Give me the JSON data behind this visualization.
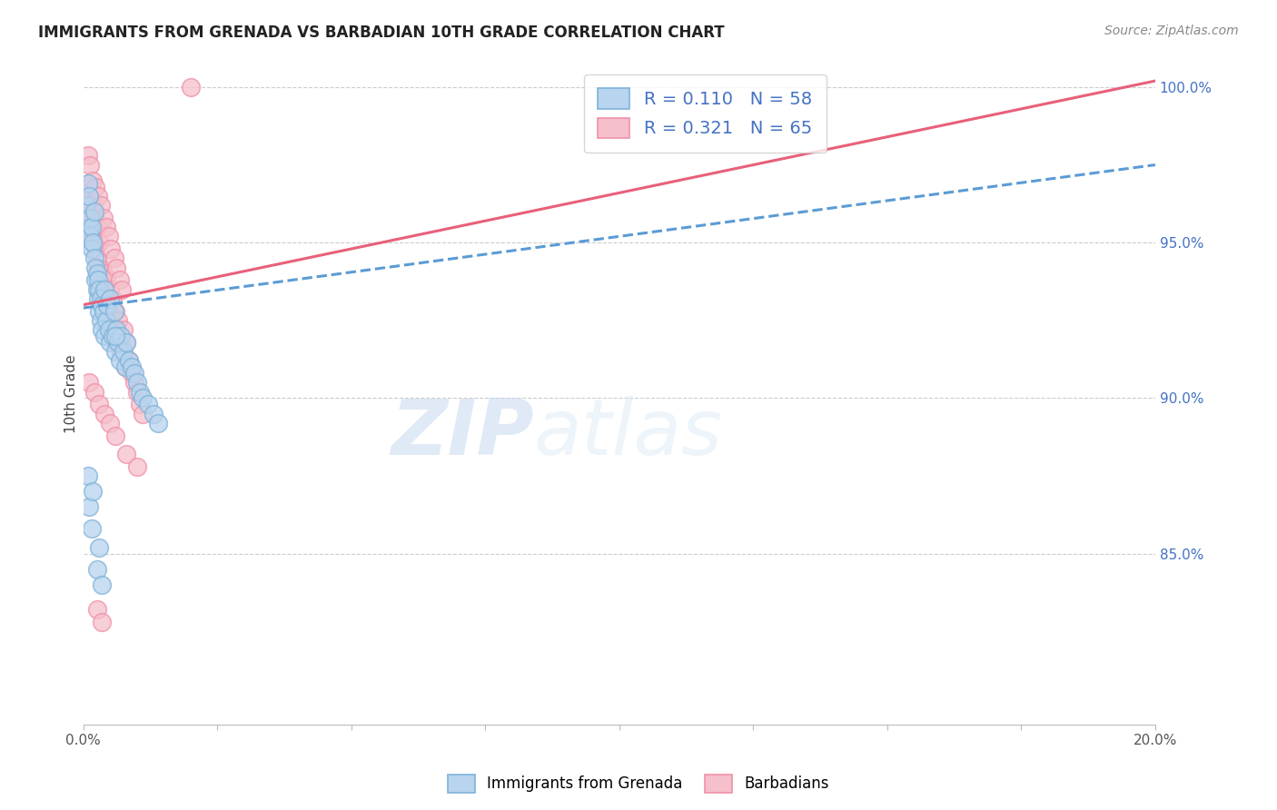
{
  "title": "IMMIGRANTS FROM GRENADA VS BARBADIAN 10TH GRADE CORRELATION CHART",
  "source": "Source: ZipAtlas.com",
  "legend_label1": "Immigrants from Grenada",
  "legend_label2": "Barbadians",
  "ylabel": "10th Grade",
  "ylabel_right_ticks": [
    "100.0%",
    "95.0%",
    "90.0%",
    "85.0%"
  ],
  "ylabel_right_vals": [
    1.0,
    0.95,
    0.9,
    0.85
  ],
  "R1": 0.11,
  "N1": 58,
  "R2": 0.321,
  "N2": 65,
  "blue_face": "#b8d4ee",
  "blue_edge": "#7fb3d9",
  "pink_face": "#f5c0cb",
  "pink_edge": "#f090a8",
  "blue_line_color": "#5b9bd5",
  "pink_line_color": "#e8607a",
  "right_axis_color": "#4472c4",
  "xmin": 0.0,
  "xmax": 0.2,
  "ymin": 0.795,
  "ymax": 1.008,
  "watermark_zip": "ZIP",
  "watermark_atlas": "atlas",
  "blue_trend_x0": 0.0,
  "blue_trend_y0": 0.929,
  "blue_trend_x1": 0.2,
  "blue_trend_y1": 0.975,
  "pink_trend_x0": 0.0,
  "pink_trend_y0": 0.93,
  "pink_trend_x1": 0.2,
  "pink_trend_y1": 1.002,
  "blue_scatter_x": [
    0.0005,
    0.0008,
    0.001,
    0.001,
    0.0012,
    0.0012,
    0.0015,
    0.0015,
    0.0018,
    0.002,
    0.002,
    0.0022,
    0.0022,
    0.0025,
    0.0025,
    0.0028,
    0.0028,
    0.003,
    0.003,
    0.0032,
    0.0032,
    0.0035,
    0.0035,
    0.0038,
    0.004,
    0.004,
    0.0042,
    0.0045,
    0.0048,
    0.005,
    0.005,
    0.0055,
    0.0058,
    0.006,
    0.0062,
    0.0065,
    0.0068,
    0.007,
    0.0075,
    0.0078,
    0.008,
    0.0085,
    0.009,
    0.0095,
    0.01,
    0.0105,
    0.011,
    0.012,
    0.013,
    0.014,
    0.0008,
    0.001,
    0.0015,
    0.0018,
    0.0025,
    0.003,
    0.0035,
    0.006
  ],
  "blue_scatter_y": [
    0.962,
    0.969,
    0.965,
    0.955,
    0.958,
    0.952,
    0.955,
    0.948,
    0.95,
    0.945,
    0.96,
    0.942,
    0.938,
    0.94,
    0.935,
    0.938,
    0.932,
    0.935,
    0.928,
    0.932,
    0.925,
    0.93,
    0.922,
    0.928,
    0.935,
    0.92,
    0.925,
    0.93,
    0.922,
    0.918,
    0.932,
    0.92,
    0.928,
    0.915,
    0.922,
    0.918,
    0.912,
    0.92,
    0.915,
    0.91,
    0.918,
    0.912,
    0.91,
    0.908,
    0.905,
    0.902,
    0.9,
    0.898,
    0.895,
    0.892,
    0.875,
    0.865,
    0.858,
    0.87,
    0.845,
    0.852,
    0.84,
    0.92
  ],
  "pink_scatter_x": [
    0.0005,
    0.0008,
    0.001,
    0.0012,
    0.0015,
    0.0015,
    0.0018,
    0.002,
    0.002,
    0.0022,
    0.0025,
    0.0025,
    0.0028,
    0.003,
    0.003,
    0.0032,
    0.0035,
    0.0038,
    0.004,
    0.0042,
    0.0045,
    0.0048,
    0.005,
    0.0052,
    0.0055,
    0.0058,
    0.006,
    0.0062,
    0.0065,
    0.0068,
    0.007,
    0.0075,
    0.0078,
    0.008,
    0.0085,
    0.009,
    0.0095,
    0.01,
    0.0105,
    0.011,
    0.0008,
    0.0012,
    0.0018,
    0.0022,
    0.0028,
    0.0032,
    0.0038,
    0.0042,
    0.0048,
    0.0052,
    0.0058,
    0.0062,
    0.0068,
    0.0072,
    0.001,
    0.002,
    0.003,
    0.004,
    0.005,
    0.006,
    0.008,
    0.01,
    0.0025,
    0.0035,
    0.02
  ],
  "pink_scatter_y": [
    0.96,
    0.965,
    0.968,
    0.958,
    0.955,
    0.962,
    0.952,
    0.95,
    0.958,
    0.948,
    0.945,
    0.955,
    0.942,
    0.94,
    0.95,
    0.938,
    0.935,
    0.94,
    0.932,
    0.938,
    0.93,
    0.928,
    0.935,
    0.925,
    0.932,
    0.922,
    0.928,
    0.918,
    0.925,
    0.92,
    0.915,
    0.922,
    0.91,
    0.918,
    0.912,
    0.908,
    0.905,
    0.902,
    0.898,
    0.895,
    0.978,
    0.975,
    0.97,
    0.968,
    0.965,
    0.962,
    0.958,
    0.955,
    0.952,
    0.948,
    0.945,
    0.942,
    0.938,
    0.935,
    0.905,
    0.902,
    0.898,
    0.895,
    0.892,
    0.888,
    0.882,
    0.878,
    0.832,
    0.828,
    1.0
  ]
}
